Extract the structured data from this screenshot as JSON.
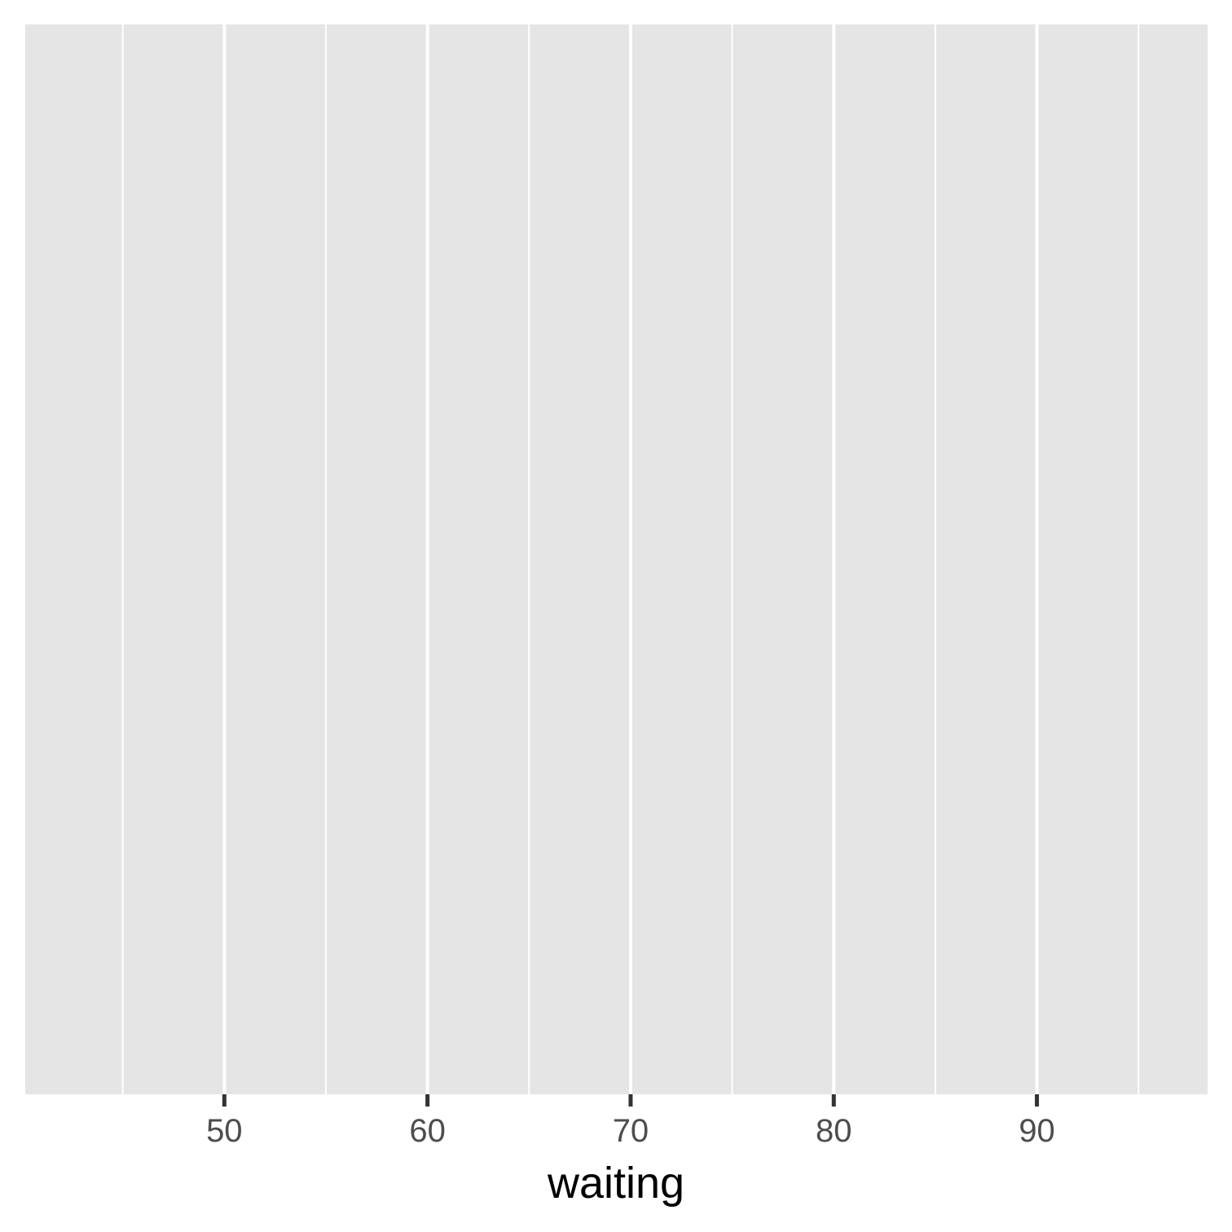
{
  "chart_data": {
    "type": "scatter",
    "title": "",
    "xlabel": "waiting",
    "ylabel": "",
    "xlim": [
      40.2,
      98.4
    ],
    "x_ticks": [
      50,
      60,
      70,
      80,
      90
    ],
    "x_minor_ticks": [
      45,
      55,
      65,
      75,
      85,
      95
    ],
    "x_tick_labels": [
      "50",
      "60",
      "70",
      "80",
      "90"
    ],
    "y_ticks": [],
    "series": [],
    "grid": true,
    "legend": "none",
    "colors": {
      "panel_background": "#e5e5e5",
      "grid": "#ffffff",
      "tick_mark": "#333333",
      "tick_label": "#4d4d4d",
      "axis_title": "#000000"
    }
  }
}
